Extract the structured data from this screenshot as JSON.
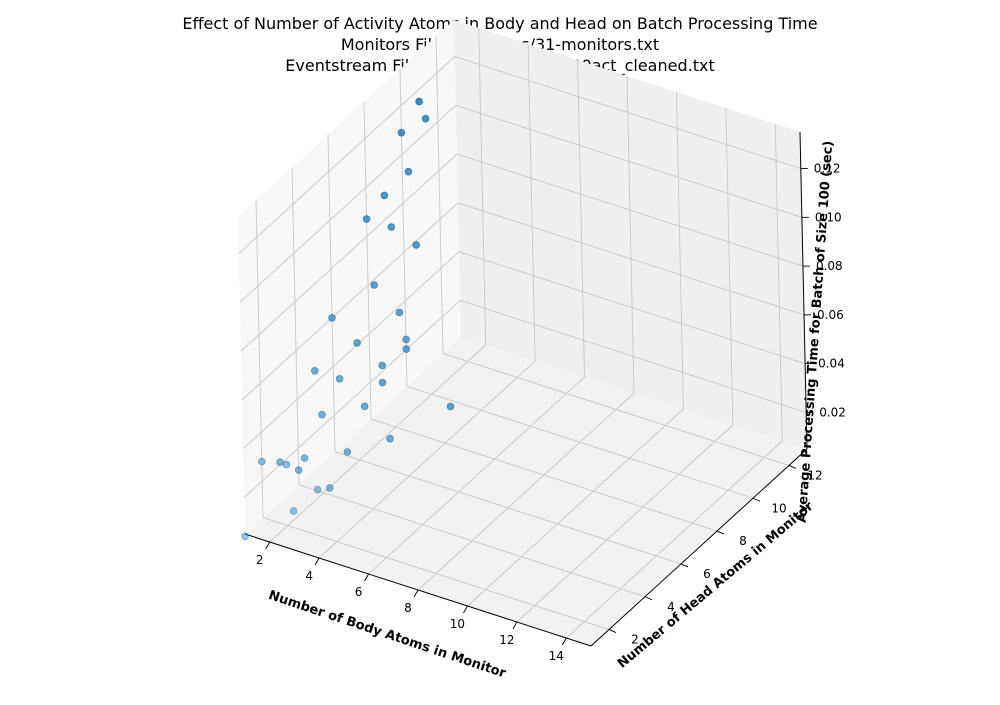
{
  "chart_data": {
    "type": "scatter",
    "projection": "3d",
    "title": [
      "Effect of Number of Activity Atoms in Body and Head on Batch Processing Time",
      "Monitors File: examples/31-monitors.txt",
      "Eventstream File: output/gib25_10000act_cleaned.txt"
    ],
    "xlabel": "Number of Body Atoms in Monitor",
    "ylabel": "Number of Head Atoms in Monitor",
    "zlabel": "Average Processing Time for Batch of Size 100 (sec)",
    "xlim": [
      1,
      15
    ],
    "ylim": [
      1,
      13
    ],
    "zlim": [
      0.005,
      0.135
    ],
    "xticks": [
      "2",
      "4",
      "6",
      "8",
      "10",
      "12",
      "14"
    ],
    "yticks": [
      "2",
      "4",
      "6",
      "8",
      "10",
      "12"
    ],
    "zticks": [
      "0.02",
      "0.04",
      "0.06",
      "0.08",
      "0.10",
      "0.12"
    ],
    "marker_color": "#1f77b4",
    "grid": true,
    "points": [
      {
        "x": 1,
        "y": 1,
        "z": 0.004
      },
      {
        "x": 1,
        "y": 2,
        "z": 0.028
      },
      {
        "x": 1,
        "y": 3,
        "z": 0.021
      },
      {
        "x": 1,
        "y": 4,
        "z": 0.011
      },
      {
        "x": 1,
        "y": 5,
        "z": 0.045
      },
      {
        "x": 1,
        "y": 6,
        "z": 0.06
      },
      {
        "x": 1,
        "y": 8,
        "z": 0.087
      },
      {
        "x": 1,
        "y": 9,
        "z": 0.09
      },
      {
        "x": 1,
        "y": 10,
        "z": 0.109
      },
      {
        "x": 1,
        "y": 11,
        "z": 0.115
      },
      {
        "x": 2,
        "y": 2,
        "z": 0.03
      },
      {
        "x": 2,
        "y": 3,
        "z": 0.026
      },
      {
        "x": 2,
        "y": 4,
        "z": 0.037
      },
      {
        "x": 2,
        "y": 5,
        "z": 0.045
      },
      {
        "x": 2,
        "y": 6,
        "z": 0.053
      },
      {
        "x": 2,
        "y": 7,
        "z": 0.07
      },
      {
        "x": 2,
        "y": 8,
        "z": 0.087
      },
      {
        "x": 2,
        "y": 9,
        "z": 0.103
      },
      {
        "x": 2,
        "y": 10,
        "z": 0.118
      },
      {
        "x": 3,
        "y": 1,
        "z": 0.021
      },
      {
        "x": 3,
        "y": 3,
        "z": 0.017
      },
      {
        "x": 3,
        "y": 4,
        "z": 0.025
      },
      {
        "x": 3,
        "y": 5,
        "z": 0.037
      },
      {
        "x": 3,
        "y": 6,
        "z": 0.04
      },
      {
        "x": 3,
        "y": 6,
        "z": 0.047
      },
      {
        "x": 3,
        "y": 7,
        "z": 0.062
      },
      {
        "x": 3,
        "y": 8,
        "z": 0.083
      },
      {
        "x": 4,
        "y": 1,
        "z": 0.033
      },
      {
        "x": 4,
        "y": 5,
        "z": 0.027
      },
      {
        "x": 4,
        "y": 6,
        "z": 0.057
      },
      {
        "x": 4,
        "y": 6,
        "z": 0.061
      },
      {
        "x": 5,
        "y": 7,
        "z": 0.03
      }
    ]
  }
}
